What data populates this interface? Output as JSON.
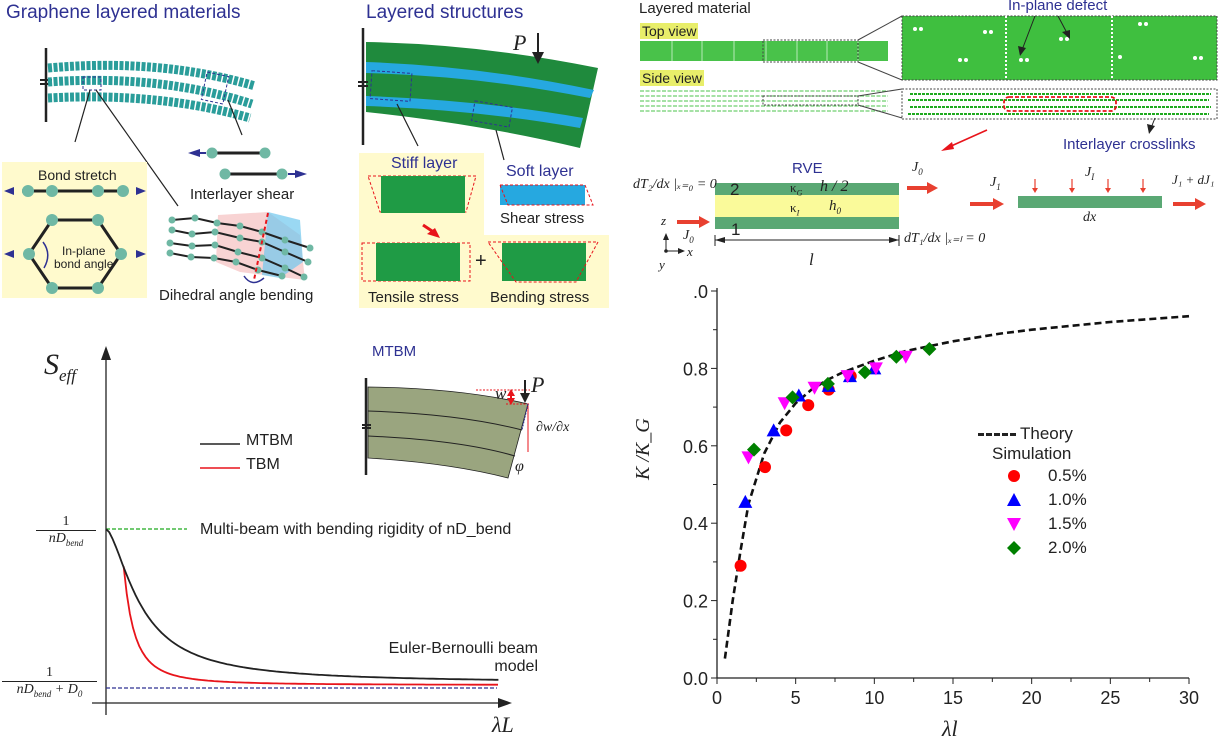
{
  "panel_a": {
    "title": "Graphene layered materials",
    "bond_stretch": "Bond stretch",
    "in_plane_line1": "In-plane",
    "in_plane_line2": "bond angle",
    "interlayer_shear": "Interlayer shear",
    "dihedral": "Dihedral angle bending"
  },
  "panel_b": {
    "title": "Layered structures",
    "load": "P",
    "stiff_layer": "Stiff layer",
    "soft_layer": "Soft layer",
    "shear_stress": "Shear stress",
    "tensile_stress": "Tensile stress",
    "bending_stress": "Bending stress",
    "plus": "+"
  },
  "panel_c": {
    "title": "Layered material",
    "top_view": "Top view",
    "side_view": "Side view",
    "in_plane_defect": "In-plane defect",
    "interlayer_crosslinks": "Interlayer crosslinks",
    "rve": "RVE",
    "layer2": "2",
    "layer1": "1",
    "kappa_g": "κ",
    "kappa_g_sub": "G",
    "kappa_i": "κ",
    "kappa_i_sub": "I",
    "h_half": "h / 2",
    "h0": "h",
    "h0_sub": "0",
    "bc_left": "dT₂/dx |ₓ₌₀ = 0",
    "bc_right": "dT₁/dx |ₓ₌ₗ = 0",
    "j0": "J",
    "j0_sub": "0",
    "length": "l",
    "axis_z": "z",
    "axis_x": "x",
    "axis_y": "y",
    "j1": "J",
    "j1_sub": "1",
    "ji": "J",
    "ji_sub": "I",
    "j1_plus": "J₁ + dJ₁",
    "dx": "dx"
  },
  "panel_d": {
    "mtbm_title": "MTBM",
    "load": "P",
    "w": "w",
    "dwdx": "∂w/∂x",
    "phi": "φ"
  },
  "chart_data": [
    {
      "type": "line",
      "title": "",
      "xlabel": "λL",
      "ylabel": "S_eff",
      "y_ticks": [
        "1/(nD_bend)",
        "1/(nD_bend + D0)"
      ],
      "series": [
        {
          "name": "MTBM",
          "color": "#222222",
          "description": "starts at 1/(nD_bend), decays to 1/(nD_bend+D0)"
        },
        {
          "name": "TBM",
          "color": "#e8141b",
          "description": "diverges at small λL, decays to 1/(nD_bend+D0)"
        }
      ],
      "annotations": [
        "Multi-beam with bending rigidity of nD_bend",
        "Euler-Bernoulli beam model"
      ],
      "legend": "center-right",
      "legend_entries": [
        "MTBM",
        "TBM"
      ]
    },
    {
      "type": "scatter",
      "title": "",
      "xlabel": "λl",
      "ylabel": "K /K_G",
      "xlim": [
        0,
        30
      ],
      "ylim": [
        0,
        1.0
      ],
      "x_ticks": [
        0,
        5,
        10,
        15,
        20,
        25,
        30
      ],
      "y_ticks": [
        "0.0",
        "0.2",
        "0.4",
        "0.6",
        "0.8",
        ".0"
      ],
      "legend": "center-right",
      "legend_title_sim": "Simulation",
      "theory": {
        "name": "Theory",
        "x": [
          0.5,
          1,
          1.5,
          2,
          3,
          4,
          5,
          6,
          7,
          8,
          10,
          12,
          15,
          18,
          20,
          25,
          30
        ],
        "y": [
          0.05,
          0.2,
          0.33,
          0.45,
          0.58,
          0.66,
          0.71,
          0.745,
          0.77,
          0.79,
          0.82,
          0.845,
          0.87,
          0.89,
          0.9,
          0.92,
          0.935
        ]
      },
      "series": [
        {
          "name": "0.5%",
          "marker": "circle",
          "color": "#ff0000",
          "x": [
            1.5,
            3.05,
            4.4,
            5.8,
            7.1,
            8.5
          ],
          "y": [
            0.29,
            0.545,
            0.64,
            0.705,
            0.745,
            0.78
          ]
        },
        {
          "name": "1.0%",
          "marker": "triangle-up",
          "color": "#0000ff",
          "x": [
            1.8,
            3.6,
            5.2,
            7.1,
            8.45,
            10.0
          ],
          "y": [
            0.455,
            0.64,
            0.73,
            0.755,
            0.78,
            0.8
          ]
        },
        {
          "name": "1.5%",
          "marker": "triangle-down",
          "color": "#ff00ff",
          "x": [
            2.0,
            4.3,
            6.2,
            8.3,
            10.1,
            12.0
          ],
          "y": [
            0.57,
            0.71,
            0.75,
            0.78,
            0.8,
            0.83
          ]
        },
        {
          "name": "2.0%",
          "marker": "diamond",
          "color": "#008000",
          "x": [
            2.35,
            4.8,
            7.05,
            9.4,
            11.4,
            13.5
          ],
          "y": [
            0.59,
            0.725,
            0.76,
            0.79,
            0.83,
            0.85
          ]
        }
      ]
    }
  ]
}
